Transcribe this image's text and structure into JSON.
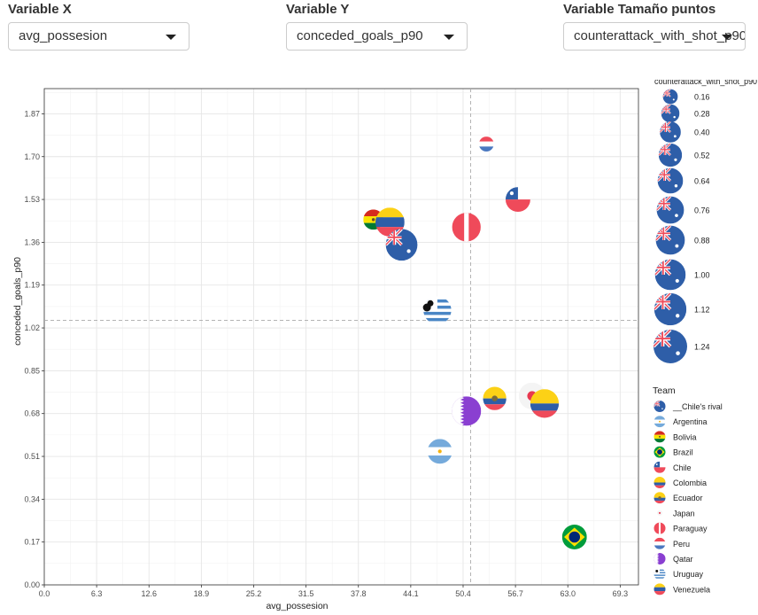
{
  "controls": {
    "x": {
      "label": "Variable X",
      "value": "avg_possesion"
    },
    "y": {
      "label": "Variable Y",
      "value": "conceded_goals_p90"
    },
    "size": {
      "label": "Variable Tamaño puntos",
      "value": "counterattack_with_shot_p90"
    }
  },
  "colors": {
    "grid_major": "#e6e6e6",
    "grid_minor": "#f2f2f2",
    "ref_line": "#aaaaaa",
    "flag_blue": "#2e5ea8",
    "flag_red": "#ef4a5a"
  },
  "chart_data": {
    "type": "scatter",
    "xlabel": "avg_possesion",
    "ylabel": "conceded_goals_p90",
    "xlim": [
      0,
      71.5
    ],
    "ylim": [
      0,
      1.97
    ],
    "xticks": [
      "0.0",
      "6.3",
      "12.6",
      "18.9",
      "25.2",
      "31.5",
      "37.8",
      "44.1",
      "50.4",
      "56.7",
      "63.0",
      "69.3"
    ],
    "yticks": [
      "0.00",
      "0.17",
      "0.34",
      "0.51",
      "0.68",
      "0.85",
      "1.02",
      "1.19",
      "1.36",
      "1.53",
      "1.70",
      "1.87"
    ],
    "ref_x": 51.3,
    "ref_y": 1.05,
    "grid": true,
    "size_legend": {
      "title": "counterattack_with_shot_p90",
      "values": [
        "0.16",
        "0.28",
        "0.40",
        "0.52",
        "0.64",
        "0.76",
        "0.88",
        "1.00",
        "1.12",
        "1.24"
      ]
    },
    "team_legend": {
      "title": "Team",
      "entries": [
        "__Chile's rival",
        "Argentina",
        "Bolivia",
        "Brazil",
        "Chile",
        "Colombia",
        "Ecuador",
        "Japan",
        "Paraguay",
        "Peru",
        "Qatar",
        "Uruguay",
        "Venezuela"
      ]
    },
    "points": [
      {
        "team": "Peru",
        "x": 53.2,
        "y": 1.75,
        "size": 0.16
      },
      {
        "team": "Chile",
        "x": 57.0,
        "y": 1.53,
        "size": 0.6
      },
      {
        "team": "Paraguay",
        "x": 50.8,
        "y": 1.42,
        "size": 0.85
      },
      {
        "team": "Bolivia",
        "x": 39.6,
        "y": 1.45,
        "size": 0.36
      },
      {
        "team": "Venezuela",
        "x": 41.6,
        "y": 1.44,
        "size": 0.88
      },
      {
        "team": "__Chile's rival",
        "x": 43.0,
        "y": 1.35,
        "size": 1.08
      },
      {
        "team": "Uruguay",
        "x": 47.3,
        "y": 1.09,
        "size": 0.8
      },
      {
        "team": "Ecuador",
        "x": 54.2,
        "y": 0.74,
        "size": 0.52
      },
      {
        "team": "Japan",
        "x": 58.7,
        "y": 0.75,
        "size": 0.72
      },
      {
        "team": "Colombia",
        "x": 60.2,
        "y": 0.72,
        "size": 0.85
      },
      {
        "team": "Qatar",
        "x": 50.8,
        "y": 0.69,
        "size": 0.9
      },
      {
        "team": "Argentina",
        "x": 47.6,
        "y": 0.53,
        "size": 0.6
      },
      {
        "team": "Brazil",
        "x": 63.8,
        "y": 0.19,
        "size": 0.6
      }
    ]
  }
}
